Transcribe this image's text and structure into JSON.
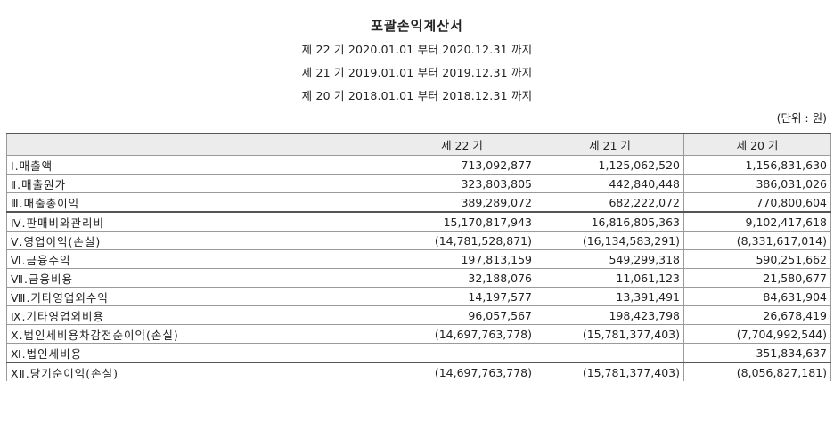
{
  "header": {
    "title": "포괄손익계산서",
    "periods": [
      "제 22 기 2020.01.01 부터 2020.12.31 까지",
      "제 21 기 2019.01.01 부터 2019.12.31 까지",
      "제 20 기 2018.01.01 부터 2018.12.31 까지"
    ],
    "unit": "(단위 : 원)"
  },
  "table": {
    "columns": [
      "",
      "제 22 기",
      "제 21 기",
      "제 20 기"
    ],
    "rows": [
      {
        "label": "Ⅰ.매출액",
        "v22": "713,092,877",
        "v21": "1,125,062,520",
        "v20": "1,156,831,630"
      },
      {
        "label": "Ⅱ.매출원가",
        "v22": "323,803,805",
        "v21": "442,840,448",
        "v20": "386,031,026"
      },
      {
        "label": "Ⅲ.매출총이익",
        "v22": "389,289,072",
        "v21": "682,222,072",
        "v20": "770,800,604"
      },
      {
        "label": "Ⅳ.판매비와관리비",
        "v22": "15,170,817,943",
        "v21": "16,816,805,363",
        "v20": "9,102,417,618"
      },
      {
        "label": "Ⅴ.영업이익(손실)",
        "v22": "(14,781,528,871)",
        "v21": "(16,134,583,291)",
        "v20": "(8,331,617,014)"
      },
      {
        "label": "Ⅵ.금융수익",
        "v22": "197,813,159",
        "v21": "549,299,318",
        "v20": "590,251,662"
      },
      {
        "label": "Ⅶ.금융비용",
        "v22": "32,188,076",
        "v21": "11,061,123",
        "v20": "21,580,677"
      },
      {
        "label": "Ⅷ.기타영업외수익",
        "v22": "14,197,577",
        "v21": "13,391,491",
        "v20": "84,631,904"
      },
      {
        "label": "Ⅸ.기타영업외비용",
        "v22": "96,057,567",
        "v21": "198,423,798",
        "v20": "26,678,419"
      },
      {
        "label": "Ⅹ.법인세비용차감전순이익(손실)",
        "v22": "(14,697,763,778)",
        "v21": "(15,781,377,403)",
        "v20": "(7,704,992,544)"
      },
      {
        "label": "Ⅺ.법인세비용",
        "v22": "",
        "v21": "",
        "v20": "351,834,637"
      },
      {
        "label": "ⅩⅡ.당기순이익(손실)",
        "v22": "(14,697,763,778)",
        "v21": "(15,781,377,403)",
        "v20": "(8,056,827,181)"
      }
    ]
  }
}
